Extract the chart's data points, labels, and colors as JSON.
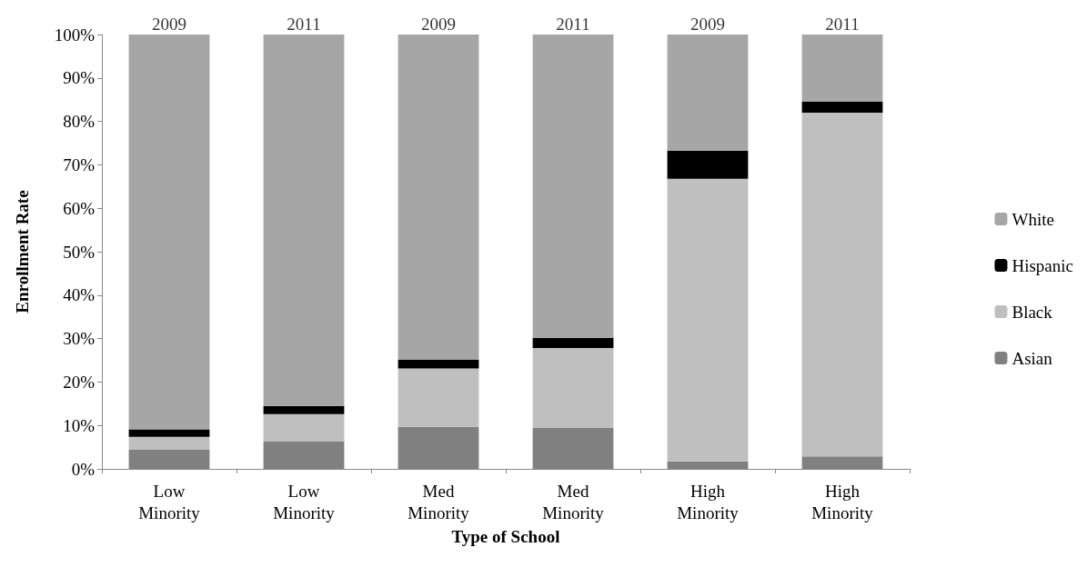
{
  "chart_data": {
    "type": "bar",
    "stacked": true,
    "xlabel": "Type of School",
    "ylabel": "Enrollment Rate",
    "categories": [
      "Low\nMinority",
      "Low\nMinority",
      "Med\nMinority",
      "Med\nMinority",
      "High\nMinority",
      "High\nMinority"
    ],
    "series": [
      {
        "name": "Asian",
        "color": "#808080",
        "values": [
          4.5,
          6.3,
          9.7,
          9.5,
          1.7,
          2.9
        ]
      },
      {
        "name": "Black",
        "color": "#bfbfbf",
        "values": [
          2.9,
          6.3,
          13.4,
          18.3,
          65.1,
          79.1
        ]
      },
      {
        "name": "Hispanic",
        "color": "#000000",
        "values": [
          1.7,
          1.9,
          2.0,
          2.4,
          6.5,
          2.5
        ]
      },
      {
        "name": "White",
        "color": "#a6a6a6",
        "values": [
          90.9,
          85.5,
          74.9,
          69.8,
          26.7,
          15.5
        ]
      }
    ],
    "annotations": [
      "2009",
      "2011",
      "2009",
      "2011",
      "2009",
      "2011"
    ],
    "ylim": [
      0,
      100
    ],
    "yticks": [
      {
        "value": 0,
        "label": "0%"
      },
      {
        "value": 10,
        "label": "10%"
      },
      {
        "value": 20,
        "label": "20%"
      },
      {
        "value": 30,
        "label": "30%"
      },
      {
        "value": 40,
        "label": "40%"
      },
      {
        "value": 50,
        "label": "50%"
      },
      {
        "value": 60,
        "label": "60%"
      },
      {
        "value": 70,
        "label": "70%"
      },
      {
        "value": 80,
        "label": "80%"
      },
      {
        "value": 90,
        "label": "90%"
      },
      {
        "value": 100,
        "label": "100%"
      }
    ],
    "grid": false,
    "legend": "right"
  }
}
